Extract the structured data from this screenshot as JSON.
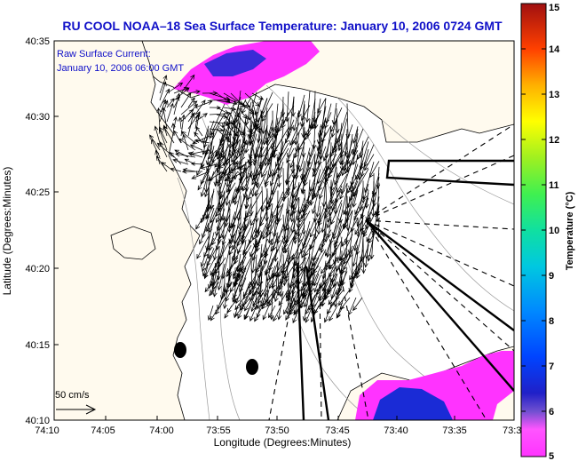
{
  "header": {
    "title": "RU COOL  NOAA–18  Sea Surface Temperature:  January 10, 2006 0724 GMT"
  },
  "legend": {
    "line1": "Raw Surface Current:",
    "line2": "January 10, 2006 06:00 GMT"
  },
  "scale": {
    "label": "50 cm/s"
  },
  "axes": {
    "xlabel": "Longitude (Degrees:Minutes)",
    "ylabel": "Latitude (Degrees:Minutes)",
    "x_ticks": [
      "74:10",
      "74:05",
      "74:00",
      "73:55",
      "73:50",
      "73:45",
      "73:40",
      "73:35",
      "73:3"
    ],
    "y_ticks": [
      "40:35",
      "40:30",
      "40:25",
      "40:20",
      "40:15",
      "40:10"
    ]
  },
  "colorbar": {
    "label": "Temperature (°C)",
    "ticks": [
      "15",
      "14",
      "13",
      "12",
      "11",
      "10",
      "9",
      "8",
      "7",
      "6",
      "5"
    ],
    "range": [
      5,
      15
    ]
  },
  "colors": {
    "title": "#1010c8",
    "land": "#fffaee",
    "sst_warm": "#ff33ff",
    "sst_cool": "#1a2bd6"
  }
}
